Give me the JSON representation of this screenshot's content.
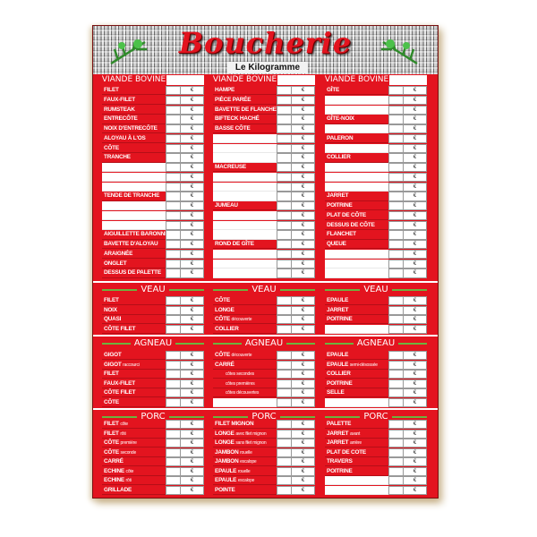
{
  "header": {
    "title": "Boucherie",
    "subtitle": "Le Kilogramme"
  },
  "currency": "€",
  "colors": {
    "board_red": "#e3141f",
    "accent_green": "#6cb33f"
  },
  "sections": [
    {
      "name": "viande-bovine",
      "columns": [
        {
          "title": "VIANDE BOVINE",
          "rows": [
            {
              "label": "FILET"
            },
            {
              "label": "FAUX-FILET"
            },
            {
              "label": "RUMSTEAK"
            },
            {
              "label": "ENTRECÔTE"
            },
            {
              "label": "NOIX D'ENTRECÔTE"
            },
            {
              "label": "ALOYAU À L'OS"
            },
            {
              "label": "CÔTE"
            },
            {
              "label": "TRANCHE"
            },
            {
              "label": ""
            },
            {
              "label": ""
            },
            {
              "label": ""
            },
            {
              "label": "TENDE DE TRANCHE"
            },
            {
              "label": ""
            },
            {
              "label": ""
            },
            {
              "label": ""
            },
            {
              "label": "AIGUILLETTE BARONNE"
            },
            {
              "label": "BAVETTE D'ALOYAU"
            },
            {
              "label": "ARAIGNÉE"
            },
            {
              "label": "ONGLET"
            },
            {
              "label": "DESSUS DE PALETTE"
            }
          ]
        },
        {
          "title": "VIANDE BOVINE",
          "rows": [
            {
              "label": "HAMPE"
            },
            {
              "label": "PIÈCE PARÉE"
            },
            {
              "label": "BAVETTE DE FLANCHET"
            },
            {
              "label": "BIFTECK HACHÉ"
            },
            {
              "label": "BASSE CÔTE"
            },
            {
              "label": ""
            },
            {
              "label": ""
            },
            {
              "label": ""
            },
            {
              "label": "MACREUSE"
            },
            {
              "label": ""
            },
            {
              "label": ""
            },
            {
              "label": ""
            },
            {
              "label": "JUMEAU"
            },
            {
              "label": ""
            },
            {
              "label": ""
            },
            {
              "label": ""
            },
            {
              "label": "ROND DE GÎTE"
            },
            {
              "label": ""
            },
            {
              "label": ""
            },
            {
              "label": ""
            }
          ]
        },
        {
          "title": "VIANDE BOVINE",
          "rows": [
            {
              "label": "GÎTE"
            },
            {
              "label": ""
            },
            {
              "label": ""
            },
            {
              "label": "GÎTE-NOIX"
            },
            {
              "label": ""
            },
            {
              "label": "PALERON"
            },
            {
              "label": ""
            },
            {
              "label": "COLLIER"
            },
            {
              "label": ""
            },
            {
              "label": ""
            },
            {
              "label": ""
            },
            {
              "label": "JARRET"
            },
            {
              "label": "POITRINE"
            },
            {
              "label": "PLAT DE CÔTE"
            },
            {
              "label": "DESSUS DE CÔTE"
            },
            {
              "label": "FLANCHET"
            },
            {
              "label": "QUEUE"
            },
            {
              "label": ""
            },
            {
              "label": ""
            },
            {
              "label": ""
            }
          ]
        }
      ]
    },
    {
      "name": "veau",
      "columns": [
        {
          "title": "VEAU",
          "rows": [
            {
              "label": "FILET"
            },
            {
              "label": "NOIX"
            },
            {
              "label": "QUASI"
            },
            {
              "label": "CÔTE FILET"
            }
          ]
        },
        {
          "title": "VEAU",
          "rows": [
            {
              "label": "CÔTE"
            },
            {
              "label": "LONGE"
            },
            {
              "label": "CÔTE",
              "sub": "découverte"
            },
            {
              "label": "COLLIER"
            }
          ]
        },
        {
          "title": "VEAU",
          "rows": [
            {
              "label": "EPAULE"
            },
            {
              "label": "JARRET"
            },
            {
              "label": "POITRINE"
            },
            {
              "label": ""
            }
          ]
        }
      ]
    },
    {
      "name": "agneau",
      "columns": [
        {
          "title": "AGNEAU",
          "rows": [
            {
              "label": "GIGOT"
            },
            {
              "label": "GIGOT",
              "sub": "raccourci"
            },
            {
              "label": "FILET"
            },
            {
              "label": "FAUX-FILET"
            },
            {
              "label": "CÔTE FILET"
            },
            {
              "label": "CÔTE"
            }
          ]
        },
        {
          "title": "AGNEAU",
          "rows": [
            {
              "label": "CÔTE",
              "sub": "découverte"
            },
            {
              "label": "CARRÉ"
            },
            {
              "label": "",
              "sub": "côtes secondes",
              "indent": true
            },
            {
              "label": "",
              "sub": "côtes premières",
              "indent": true
            },
            {
              "label": "",
              "sub": "côtes découvertes",
              "indent": true
            },
            {
              "label": ""
            }
          ]
        },
        {
          "title": "AGNEAU",
          "rows": [
            {
              "label": "EPAULE"
            },
            {
              "label": "EPAULE",
              "sub": "semi-désossée"
            },
            {
              "label": "COLLIER"
            },
            {
              "label": "POITRINE"
            },
            {
              "label": "SELLE"
            },
            {
              "label": ""
            }
          ]
        }
      ]
    },
    {
      "name": "porc",
      "columns": [
        {
          "title": "PORC",
          "rows": [
            {
              "label": "FILET",
              "sub": "côte"
            },
            {
              "label": "FILET",
              "sub": "rôti"
            },
            {
              "label": "CÔTE",
              "sub": "première"
            },
            {
              "label": "CÔTE",
              "sub": "seconde"
            },
            {
              "label": "CARRÉ"
            },
            {
              "label": "ECHINE",
              "sub": "côte"
            },
            {
              "label": "ECHINE",
              "sub": "rôti"
            },
            {
              "label": "GRILLADE"
            }
          ]
        },
        {
          "title": "PORC",
          "rows": [
            {
              "label": "FILET MIGNON"
            },
            {
              "label": "LONGE",
              "sub": "avec filet mignon"
            },
            {
              "label": "LONGE",
              "sub": "sans filet mignon"
            },
            {
              "label": "JAMBON",
              "sub": "rouelle"
            },
            {
              "label": "JAMBON",
              "sub": "escalope"
            },
            {
              "label": "EPAULE",
              "sub": "rouelle"
            },
            {
              "label": "EPAULE",
              "sub": "escalope"
            },
            {
              "label": "POINTE"
            }
          ]
        },
        {
          "title": "PORC",
          "rows": [
            {
              "label": "PALETTE"
            },
            {
              "label": "JARRET",
              "sub": "avant"
            },
            {
              "label": "JARRET",
              "sub": "arrière"
            },
            {
              "label": "PLAT DE COTE"
            },
            {
              "label": "TRAVERS"
            },
            {
              "label": "POITRINE"
            },
            {
              "label": ""
            },
            {
              "label": ""
            }
          ]
        }
      ]
    }
  ]
}
